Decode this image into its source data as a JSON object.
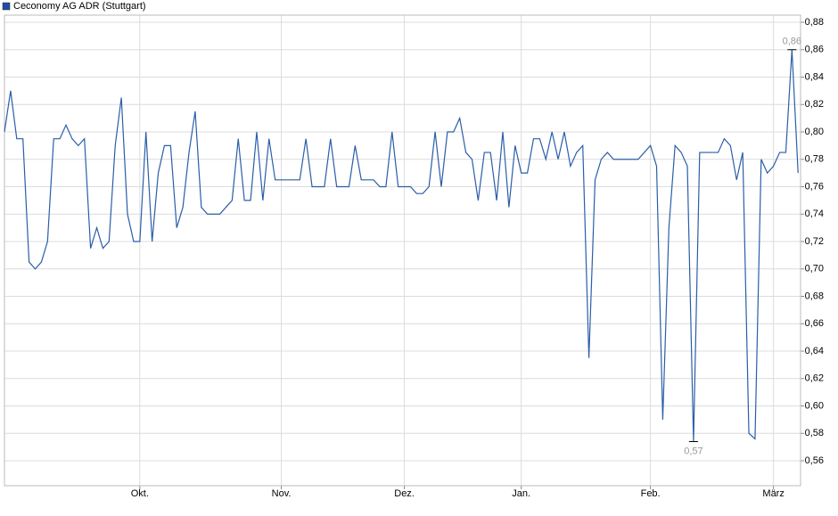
{
  "chart_data": {
    "type": "line",
    "legend": "Ceconomy AG ADR (Stuttgart)",
    "legend_position": "top-left",
    "x": [
      0,
      1,
      2,
      3,
      4,
      5,
      6,
      7,
      8,
      9,
      10,
      11,
      12,
      13,
      14,
      15,
      16,
      17,
      18,
      19,
      20,
      21,
      22,
      23,
      24,
      25,
      26,
      27,
      28,
      29,
      30,
      31,
      32,
      33,
      34,
      35,
      36,
      37,
      38,
      39,
      40,
      41,
      42,
      43,
      44,
      45,
      46,
      47,
      48,
      49,
      50,
      51,
      52,
      53,
      54,
      55,
      56,
      57,
      58,
      59,
      60,
      61,
      62,
      63,
      64,
      65,
      66,
      67,
      68,
      69,
      70,
      71,
      72,
      73,
      74,
      75,
      76,
      77,
      78,
      79,
      80,
      81,
      82,
      83,
      84,
      85,
      86,
      87,
      88,
      89,
      90,
      91,
      92,
      93,
      94,
      95,
      96,
      97,
      98,
      99,
      100,
      101,
      102,
      103,
      104,
      105,
      106,
      107,
      108,
      109,
      110,
      111,
      112,
      113,
      114,
      115,
      116,
      117,
      118,
      119,
      120,
      121,
      122,
      123,
      124,
      125,
      126,
      127,
      128,
      129
    ],
    "series": [
      {
        "name": "Ceconomy AG ADR (Stuttgart)",
        "color": "#2a5ea8",
        "values": [
          0.8,
          0.83,
          0.795,
          0.795,
          0.705,
          0.7,
          0.705,
          0.72,
          0.795,
          0.795,
          0.805,
          0.795,
          0.79,
          0.795,
          0.715,
          0.73,
          0.715,
          0.72,
          0.79,
          0.825,
          0.74,
          0.72,
          0.72,
          0.8,
          0.72,
          0.77,
          0.79,
          0.79,
          0.73,
          0.745,
          0.785,
          0.815,
          0.745,
          0.74,
          0.74,
          0.74,
          0.745,
          0.75,
          0.795,
          0.75,
          0.75,
          0.8,
          0.75,
          0.795,
          0.765,
          0.765,
          0.765,
          0.765,
          0.765,
          0.795,
          0.76,
          0.76,
          0.76,
          0.795,
          0.76,
          0.76,
          0.76,
          0.79,
          0.765,
          0.765,
          0.765,
          0.76,
          0.76,
          0.8,
          0.76,
          0.76,
          0.76,
          0.755,
          0.755,
          0.76,
          0.8,
          0.76,
          0.8,
          0.8,
          0.81,
          0.785,
          0.78,
          0.75,
          0.785,
          0.785,
          0.75,
          0.8,
          0.745,
          0.79,
          0.77,
          0.77,
          0.795,
          0.795,
          0.78,
          0.8,
          0.78,
          0.8,
          0.775,
          0.785,
          0.79,
          0.635,
          0.765,
          0.78,
          0.785,
          0.78,
          0.78,
          0.78,
          0.78,
          0.78,
          0.785,
          0.79,
          0.775,
          0.59,
          0.73,
          0.79,
          0.785,
          0.775,
          0.574,
          0.785,
          0.785,
          0.785,
          0.785,
          0.795,
          0.79,
          0.765,
          0.785,
          0.58,
          0.576,
          0.78,
          0.77,
          0.775,
          0.785,
          0.785,
          0.86,
          0.77
        ]
      }
    ],
    "annotations": [
      {
        "x": 128,
        "label": "0,86"
      },
      {
        "x": 112,
        "label": "0,57"
      }
    ],
    "xlim": [
      0,
      129.4
    ],
    "xticks": [
      {
        "value": 22,
        "label": "Okt."
      },
      {
        "value": 45,
        "label": "Nov."
      },
      {
        "value": 65,
        "label": "Dez."
      },
      {
        "value": 84,
        "label": "Jan."
      },
      {
        "value": 105,
        "label": "Feb."
      },
      {
        "value": 125,
        "label": "März"
      }
    ],
    "ylim": [
      0.5418,
      0.8852
    ],
    "yticks": [
      {
        "value": 0.56,
        "label": "0,56"
      },
      {
        "value": 0.58,
        "label": "0,58"
      },
      {
        "value": 0.6,
        "label": "0,60"
      },
      {
        "value": 0.62,
        "label": "0,62"
      },
      {
        "value": 0.64,
        "label": "0,64"
      },
      {
        "value": 0.66,
        "label": "0,66"
      },
      {
        "value": 0.68,
        "label": "0,68"
      },
      {
        "value": 0.7,
        "label": "0,70"
      },
      {
        "value": 0.72,
        "label": "0,72"
      },
      {
        "value": 0.74,
        "label": "0,74"
      },
      {
        "value": 0.76,
        "label": "0,76"
      },
      {
        "value": 0.78,
        "label": "0,78"
      },
      {
        "value": 0.8,
        "label": "0,80"
      },
      {
        "value": 0.82,
        "label": "0,82"
      },
      {
        "value": 0.84,
        "label": "0,84"
      },
      {
        "value": 0.86,
        "label": "0,86"
      },
      {
        "value": 0.88,
        "label": "0,88"
      }
    ],
    "grid": true
  }
}
